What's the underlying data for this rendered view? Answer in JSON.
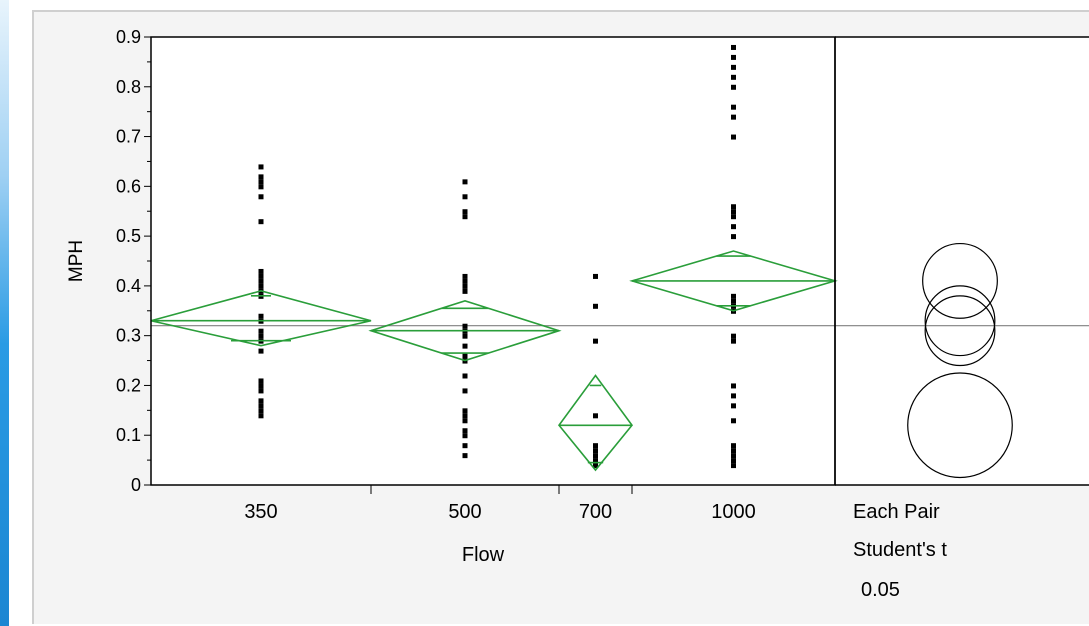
{
  "chart_data": {
    "type": "scatter",
    "subtype": "oneway-means-diamonds",
    "xlabel": "Flow",
    "ylabel": "MPH",
    "ylim": [
      0,
      0.9
    ],
    "yticks": [
      "0",
      "0.1",
      "0.2",
      "0.3",
      "0.4",
      "0.5",
      "0.6",
      "0.7",
      "0.8",
      "0.9"
    ],
    "grand_mean": 0.32,
    "categories": [
      "350",
      "500",
      "700",
      "1000"
    ],
    "groups": [
      {
        "label": "350",
        "mean": 0.33,
        "ci_lower": 0.28,
        "ci_upper": 0.39,
        "overlap_lower": 0.29,
        "overlap_upper": 0.38,
        "points": [
          0.64,
          0.62,
          0.61,
          0.6,
          0.58,
          0.53,
          0.43,
          0.42,
          0.41,
          0.4,
          0.39,
          0.38,
          0.34,
          0.33,
          0.31,
          0.3,
          0.29,
          0.27,
          0.21,
          0.2,
          0.19,
          0.17,
          0.16,
          0.15,
          0.14
        ]
      },
      {
        "label": "500",
        "mean": 0.31,
        "ci_lower": 0.25,
        "ci_upper": 0.37,
        "overlap_lower": 0.265,
        "overlap_upper": 0.355,
        "points": [
          0.61,
          0.58,
          0.55,
          0.54,
          0.42,
          0.41,
          0.4,
          0.39,
          0.32,
          0.31,
          0.3,
          0.28,
          0.26,
          0.25,
          0.22,
          0.19,
          0.15,
          0.14,
          0.13,
          0.11,
          0.1,
          0.08,
          0.06
        ]
      },
      {
        "label": "700",
        "mean": 0.12,
        "ci_lower": 0.03,
        "ci_upper": 0.22,
        "overlap_lower": 0.045,
        "overlap_upper": 0.2,
        "points": [
          0.42,
          0.36,
          0.29,
          0.14,
          0.08,
          0.07,
          0.06,
          0.05,
          0.04
        ]
      },
      {
        "label": "1000",
        "mean": 0.41,
        "ci_lower": 0.35,
        "ci_upper": 0.47,
        "overlap_lower": 0.36,
        "overlap_upper": 0.46,
        "points": [
          0.88,
          0.86,
          0.84,
          0.82,
          0.8,
          0.76,
          0.74,
          0.7,
          0.56,
          0.55,
          0.54,
          0.52,
          0.5,
          0.38,
          0.37,
          0.36,
          0.35,
          0.3,
          0.29,
          0.2,
          0.18,
          0.16,
          0.13,
          0.08,
          0.07,
          0.06,
          0.05,
          0.04
        ]
      }
    ],
    "comparison_circles": [
      {
        "group": "1000",
        "center": 0.41,
        "radius": 0.075
      },
      {
        "group": "350",
        "center": 0.33,
        "radius": 0.07
      },
      {
        "group": "500",
        "center": 0.31,
        "radius": 0.07
      },
      {
        "group": "700",
        "center": 0.12,
        "radius": 0.105
      }
    ],
    "comparison_label": [
      "Each Pair",
      "Student's t",
      "0.05"
    ]
  },
  "colors": {
    "diamond": "#2a9e3a",
    "points": "#000000",
    "mean_line": "#808080",
    "accent": "#1b86d2"
  }
}
